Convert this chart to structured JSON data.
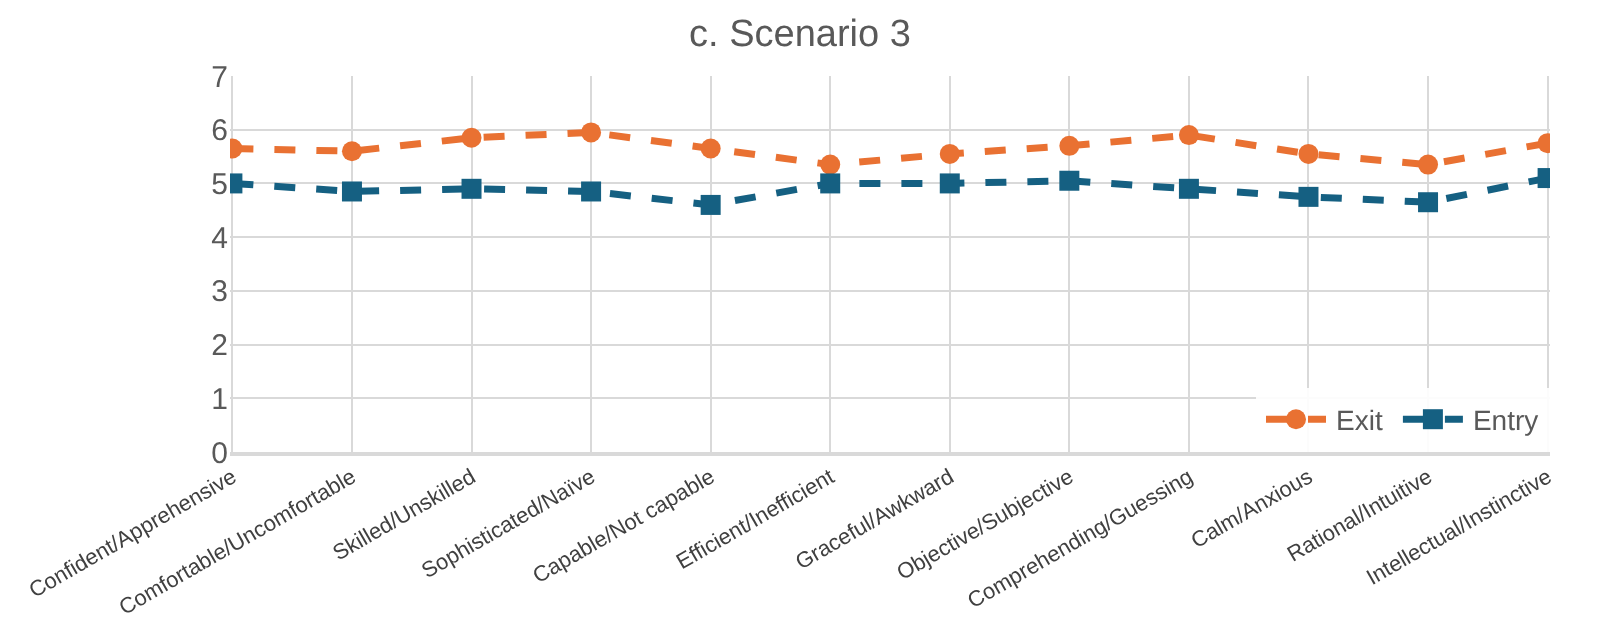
{
  "chart_data": {
    "type": "line",
    "title": "c. Scenario 3",
    "categories": [
      "Confident/Apprehensive",
      "Comfortable/Uncomfortable",
      "Skilled/Unskilled",
      "Sophisticated/Naïve",
      "Capable/Not capable",
      "Efficient/Inefficient",
      "Graceful/Awkward",
      "Objective/Subjective",
      "Comprehending/Guessing",
      "Calm/Anxious",
      "Rational/Intuitive",
      "Intellectual/Instinctive"
    ],
    "series": [
      {
        "name": "Exit",
        "color": "#e97132",
        "marker": "circle",
        "values": [
          5.65,
          5.6,
          5.85,
          5.95,
          5.65,
          5.35,
          5.55,
          5.7,
          5.9,
          5.55,
          5.35,
          5.75
        ]
      },
      {
        "name": "Entry",
        "color": "#156082",
        "marker": "square",
        "values": [
          5.0,
          4.85,
          4.9,
          4.85,
          4.6,
          5.0,
          5.0,
          5.05,
          4.9,
          4.75,
          4.65,
          5.1
        ]
      }
    ],
    "ylim": [
      0,
      7
    ],
    "yticks": [
      0,
      1,
      2,
      3,
      4,
      5,
      6,
      7
    ],
    "grid": true,
    "legend": "bottom right",
    "line_style": "dashed"
  }
}
